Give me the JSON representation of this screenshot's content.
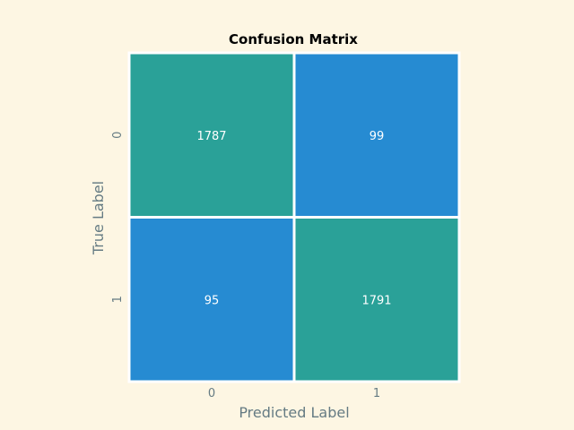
{
  "chart_data": {
    "type": "heatmap",
    "title": "Confusion Matrix",
    "xlabel": "Predicted Label",
    "ylabel": "True Label",
    "x_categories": [
      "0",
      "1"
    ],
    "y_categories": [
      "0",
      "1"
    ],
    "values": [
      [
        1787,
        99
      ],
      [
        95,
        1791
      ]
    ],
    "colors": {
      "high": "#2aa198",
      "low": "#268bd2",
      "background": "#fdf6e3",
      "cell_border": "#ffffff"
    },
    "grid": false,
    "legend": "none"
  }
}
